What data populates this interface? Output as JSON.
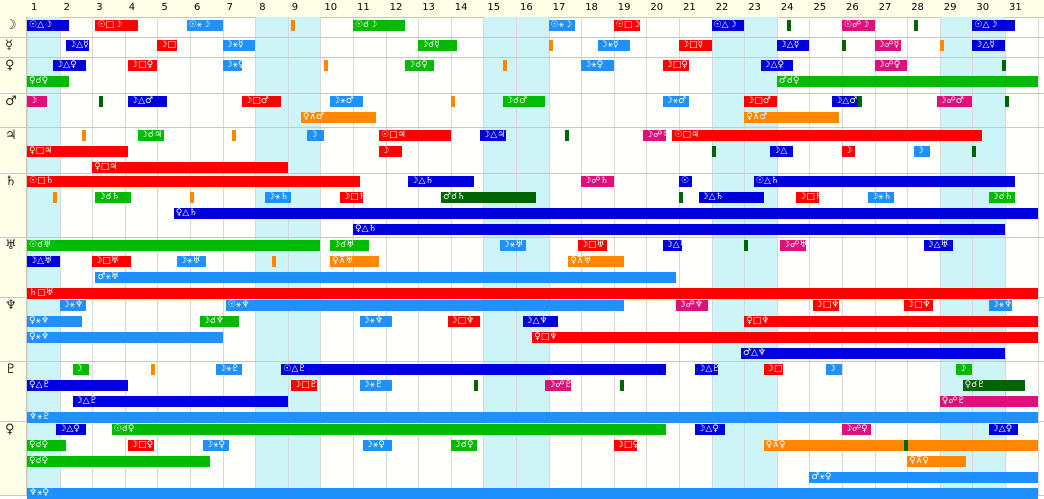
{
  "days": [
    "1",
    "2",
    "3",
    "4",
    "5",
    "6",
    "7",
    "8",
    "9",
    "10",
    "11",
    "12",
    "13",
    "14",
    "15",
    "16",
    "17",
    "18",
    "19",
    "20",
    "21",
    "22",
    "23",
    "24",
    "25",
    "26",
    "27",
    "28",
    "29",
    "30",
    "31"
  ],
  "weekend_days": [
    1,
    8,
    9,
    15,
    16,
    22,
    23,
    29,
    30
  ],
  "planets": [
    {
      "name": "moon",
      "glyph": "☽"
    },
    {
      "name": "mercury",
      "glyph": "☿"
    },
    {
      "name": "venus",
      "glyph": "♀"
    },
    {
      "name": "mars",
      "glyph": "♂"
    },
    {
      "name": "jupiter",
      "glyph": "♃"
    },
    {
      "name": "saturn",
      "glyph": "♄"
    },
    {
      "name": "uranus",
      "glyph": "♅"
    },
    {
      "name": "neptune",
      "glyph": "♆"
    },
    {
      "name": "pluto",
      "glyph": "♇"
    },
    {
      "name": "venus-2",
      "glyph": "♀"
    }
  ],
  "colors": {
    "blue": "#0000dd",
    "red": "#ff0000",
    "green": "#00bb00",
    "orange": "#ff8800",
    "sky": "#1e90ff",
    "magenta": "#e0107a",
    "darkgreen": "#006400"
  },
  "bars": [
    {
      "row": 0,
      "line": 0,
      "start": 1,
      "end": 2.3,
      "color": "blue",
      "label": "☉△☽"
    },
    {
      "row": 0,
      "line": 0,
      "start": 3.1,
      "end": 4.4,
      "color": "red",
      "label": "☉□☽"
    },
    {
      "row": 0,
      "line": 0,
      "start": 5.9,
      "end": 7.0,
      "color": "sky",
      "label": "☉⚹☽"
    },
    {
      "row": 0,
      "line": 0,
      "start": 11.0,
      "end": 12.6,
      "color": "green",
      "label": "☉☌☽"
    },
    {
      "row": 0,
      "line": 0,
      "start": 17.0,
      "end": 17.8,
      "color": "sky",
      "label": "☉⚹☽"
    },
    {
      "row": 0,
      "line": 0,
      "start": 19.0,
      "end": 19.8,
      "color": "red",
      "label": "☉□☽"
    },
    {
      "row": 0,
      "line": 0,
      "start": 22.0,
      "end": 23.0,
      "color": "blue",
      "label": "☉△☽"
    },
    {
      "row": 0,
      "line": 0,
      "start": 26.0,
      "end": 27.0,
      "color": "magenta",
      "label": "☉☍☽"
    },
    {
      "row": 0,
      "line": 0,
      "start": 30.0,
      "end": 31.3,
      "color": "blue",
      "label": "☉△☽"
    },
    {
      "row": 1,
      "line": 0,
      "start": 2.2,
      "end": 2.9,
      "color": "blue",
      "label": "☽△☿"
    },
    {
      "row": 1,
      "line": 0,
      "start": 5.0,
      "end": 5.6,
      "color": "red",
      "label": "☽□☿"
    },
    {
      "row": 1,
      "line": 0,
      "start": 7.0,
      "end": 8.0,
      "color": "sky",
      "label": "☽⚹☿"
    },
    {
      "row": 1,
      "line": 0,
      "start": 13.0,
      "end": 14.2,
      "color": "green",
      "label": "☽☌☿"
    },
    {
      "row": 1,
      "line": 0,
      "start": 18.5,
      "end": 19.5,
      "color": "sky",
      "label": "☽⚹☿"
    },
    {
      "row": 1,
      "line": 0,
      "start": 21.0,
      "end": 22.0,
      "color": "red",
      "label": "☽□☿"
    },
    {
      "row": 1,
      "line": 0,
      "start": 24.0,
      "end": 25.0,
      "color": "blue",
      "label": "☽△☿"
    },
    {
      "row": 1,
      "line": 0,
      "start": 27.0,
      "end": 27.8,
      "color": "magenta",
      "label": "☽☍☿"
    },
    {
      "row": 1,
      "line": 0,
      "start": 30.0,
      "end": 31.0,
      "color": "blue",
      "label": "☽△☿"
    },
    {
      "row": 2,
      "line": 0,
      "start": 1.8,
      "end": 2.8,
      "color": "blue",
      "label": "☽△♀"
    },
    {
      "row": 2,
      "line": 0,
      "start": 4.1,
      "end": 5.0,
      "color": "red",
      "label": "☽□♀"
    },
    {
      "row": 2,
      "line": 0,
      "start": 7.0,
      "end": 7.6,
      "color": "sky",
      "label": "☽⚹♀"
    },
    {
      "row": 2,
      "line": 0,
      "start": 12.6,
      "end": 13.5,
      "color": "green",
      "label": "☽☌♀"
    },
    {
      "row": 2,
      "line": 0,
      "start": 18.0,
      "end": 19.0,
      "color": "sky",
      "label": "☽⚹♀"
    },
    {
      "row": 2,
      "line": 0,
      "start": 20.5,
      "end": 21.3,
      "color": "red",
      "label": "☽□♀"
    },
    {
      "row": 2,
      "line": 0,
      "start": 23.5,
      "end": 24.5,
      "color": "blue",
      "label": "☽△♀"
    },
    {
      "row": 2,
      "line": 0,
      "start": 27.0,
      "end": 28.0,
      "color": "magenta",
      "label": "☽☍♀"
    },
    {
      "row": 2,
      "line": 1,
      "start": 1.0,
      "end": 2.3,
      "color": "green",
      "label": "♀☌♀"
    },
    {
      "row": 2,
      "line": 1,
      "start": 24.0,
      "end": 32.0,
      "color": "green",
      "label": "♂☌♀"
    },
    {
      "row": 3,
      "line": 0,
      "start": 1.0,
      "end": 1.6,
      "color": "magenta",
      "label": "☽"
    },
    {
      "row": 3,
      "line": 0,
      "start": 4.1,
      "end": 5.3,
      "color": "blue",
      "label": "☽△♂"
    },
    {
      "row": 3,
      "line": 0,
      "start": 7.6,
      "end": 8.8,
      "color": "red",
      "label": "☽□♂"
    },
    {
      "row": 3,
      "line": 0,
      "start": 10.3,
      "end": 11.3,
      "color": "sky",
      "label": "☽⚹♂"
    },
    {
      "row": 3,
      "line": 0,
      "start": 15.6,
      "end": 16.9,
      "color": "green",
      "label": "☽☌♂"
    },
    {
      "row": 3,
      "line": 0,
      "start": 20.5,
      "end": 21.3,
      "color": "sky",
      "label": "☽⚹♂"
    },
    {
      "row": 3,
      "line": 0,
      "start": 23.0,
      "end": 24.0,
      "color": "red",
      "label": "☽□♂"
    },
    {
      "row": 3,
      "line": 0,
      "start": 25.7,
      "end": 26.6,
      "color": "blue",
      "label": "☽△♂"
    },
    {
      "row": 3,
      "line": 0,
      "start": 28.9,
      "end": 30.0,
      "color": "magenta",
      "label": "☽☍♂"
    },
    {
      "row": 3,
      "line": 1,
      "start": 9.4,
      "end": 11.7,
      "color": "orange",
      "label": "♀⊼♂"
    },
    {
      "row": 3,
      "line": 1,
      "start": 23.0,
      "end": 25.9,
      "color": "orange",
      "label": "♀⊼♂"
    },
    {
      "row": 4,
      "line": 0,
      "start": 4.4,
      "end": 5.2,
      "color": "green",
      "label": "☽☌♃"
    },
    {
      "row": 4,
      "line": 0,
      "start": 9.6,
      "end": 10.1,
      "color": "sky",
      "label": "☽"
    },
    {
      "row": 4,
      "line": 0,
      "start": 11.8,
      "end": 14.0,
      "color": "red",
      "label": "☉□♃"
    },
    {
      "row": 4,
      "line": 0,
      "start": 14.9,
      "end": 15.7,
      "color": "blue",
      "label": "☽△♃"
    },
    {
      "row": 4,
      "line": 0,
      "start": 19.9,
      "end": 20.6,
      "color": "magenta",
      "label": "☽☍♃"
    },
    {
      "row": 4,
      "line": 0,
      "start": 20.8,
      "end": 30.3,
      "color": "red",
      "label": "☉□♃"
    },
    {
      "row": 4,
      "line": 1,
      "start": 1.0,
      "end": 4.1,
      "color": "red",
      "label": "♀□♃"
    },
    {
      "row": 4,
      "line": 1,
      "start": 11.8,
      "end": 12.5,
      "color": "red",
      "label": "☽"
    },
    {
      "row": 4,
      "line": 1,
      "start": 23.8,
      "end": 24.5,
      "color": "blue",
      "label": "☽△"
    },
    {
      "row": 4,
      "line": 1,
      "start": 26.0,
      "end": 26.4,
      "color": "red",
      "label": "☽"
    },
    {
      "row": 4,
      "line": 1,
      "start": 28.2,
      "end": 28.7,
      "color": "sky",
      "label": "☽"
    },
    {
      "row": 4,
      "line": 2,
      "start": 3.0,
      "end": 9.0,
      "color": "red",
      "label": "♀□♃"
    },
    {
      "row": 5,
      "line": 0,
      "start": 1.0,
      "end": 11.2,
      "color": "red",
      "label": "☉□♄"
    },
    {
      "row": 5,
      "line": 0,
      "start": 12.7,
      "end": 14.7,
      "color": "blue",
      "label": "☽△♄"
    },
    {
      "row": 5,
      "line": 0,
      "start": 18.0,
      "end": 19.0,
      "color": "magenta",
      "label": "☽☍♄"
    },
    {
      "row": 5,
      "line": 0,
      "start": 21.0,
      "end": 21.4,
      "color": "blue",
      "label": "☉"
    },
    {
      "row": 5,
      "line": 0,
      "start": 23.3,
      "end": 31.3,
      "color": "blue",
      "label": "☉△♄"
    },
    {
      "row": 5,
      "line": 1,
      "start": 3.1,
      "end": 4.2,
      "color": "green",
      "label": "☽☌♄"
    },
    {
      "row": 5,
      "line": 1,
      "start": 8.3,
      "end": 9.1,
      "color": "sky",
      "label": "☽⚹♄"
    },
    {
      "row": 5,
      "line": 1,
      "start": 10.6,
      "end": 11.3,
      "color": "red",
      "label": "☽□♄"
    },
    {
      "row": 5,
      "line": 1,
      "start": 13.7,
      "end": 16.6,
      "color": "darkgreen",
      "label": "♂☌♄"
    },
    {
      "row": 5,
      "line": 1,
      "start": 21.6,
      "end": 23.6,
      "color": "blue",
      "label": "☽△♄"
    },
    {
      "row": 5,
      "line": 1,
      "start": 24.6,
      "end": 25.3,
      "color": "red",
      "label": "☽□♄"
    },
    {
      "row": 5,
      "line": 1,
      "start": 26.8,
      "end": 27.6,
      "color": "sky",
      "label": "☽⚹♄"
    },
    {
      "row": 5,
      "line": 1,
      "start": 30.5,
      "end": 31.3,
      "color": "green",
      "label": "☽☌♄"
    },
    {
      "row": 5,
      "line": 2,
      "start": 5.5,
      "end": 32.0,
      "color": "blue",
      "label": "♀△♄"
    },
    {
      "row": 5,
      "line": 3,
      "start": 11.0,
      "end": 31.0,
      "color": "blue",
      "label": "♀△♄"
    },
    {
      "row": 6,
      "line": 0,
      "start": 1.0,
      "end": 10.0,
      "color": "green",
      "label": "☉☌♅"
    },
    {
      "row": 6,
      "line": 0,
      "start": 10.3,
      "end": 11.5,
      "color": "green",
      "label": "☽☌♅"
    },
    {
      "row": 6,
      "line": 0,
      "start": 15.5,
      "end": 16.3,
      "color": "sky",
      "label": "☽⚹♅"
    },
    {
      "row": 6,
      "line": 0,
      "start": 17.9,
      "end": 18.8,
      "color": "red",
      "label": "☽□♅"
    },
    {
      "row": 6,
      "line": 0,
      "start": 20.5,
      "end": 21.1,
      "color": "blue",
      "label": "☽△♅"
    },
    {
      "row": 6,
      "line": 0,
      "start": 24.1,
      "end": 24.9,
      "color": "magenta",
      "label": "☽☍♅"
    },
    {
      "row": 6,
      "line": 0,
      "start": 28.5,
      "end": 29.4,
      "color": "blue",
      "label": "☽△♅"
    },
    {
      "row": 6,
      "line": 1,
      "start": 1.0,
      "end": 2.0,
      "color": "blue",
      "label": "☽△♅"
    },
    {
      "row": 6,
      "line": 1,
      "start": 3.0,
      "end": 4.2,
      "color": "red",
      "label": "☽□♅"
    },
    {
      "row": 6,
      "line": 1,
      "start": 5.6,
      "end": 6.5,
      "color": "sky",
      "label": "☽⚹♅"
    },
    {
      "row": 6,
      "line": 1,
      "start": 10.3,
      "end": 11.8,
      "color": "orange",
      "label": "♀⊼♅"
    },
    {
      "row": 6,
      "line": 1,
      "start": 17.6,
      "end": 19.3,
      "color": "orange",
      "label": "♀⊼♅"
    },
    {
      "row": 6,
      "line": 2,
      "start": 3.1,
      "end": 20.9,
      "color": "sky",
      "label": "♂⚹♅"
    },
    {
      "row": 6,
      "line": 3,
      "start": 1.0,
      "end": 32.0,
      "color": "red",
      "label": "♄□♅"
    },
    {
      "row": 7,
      "line": 0,
      "start": 2.0,
      "end": 2.8,
      "color": "sky",
      "label": "☽⚹♆"
    },
    {
      "row": 7,
      "line": 0,
      "start": 7.1,
      "end": 19.3,
      "color": "sky",
      "label": "☉⚹♆"
    },
    {
      "row": 7,
      "line": 0,
      "start": 20.9,
      "end": 21.9,
      "color": "magenta",
      "label": "☽☍♆"
    },
    {
      "row": 7,
      "line": 0,
      "start": 25.1,
      "end": 25.9,
      "color": "red",
      "label": "☽□♆"
    },
    {
      "row": 7,
      "line": 0,
      "start": 27.9,
      "end": 28.8,
      "color": "red",
      "label": "☽□♆"
    },
    {
      "row": 7,
      "line": 0,
      "start": 30.5,
      "end": 31.2,
      "color": "sky",
      "label": "☽⚹♆"
    },
    {
      "row": 7,
      "line": 1,
      "start": 1.0,
      "end": 2.7,
      "color": "sky",
      "label": "♀⚹♆"
    },
    {
      "row": 7,
      "line": 1,
      "start": 6.3,
      "end": 7.5,
      "color": "green",
      "label": "☽☌♆"
    },
    {
      "row": 7,
      "line": 1,
      "start": 11.2,
      "end": 12.2,
      "color": "sky",
      "label": "☽⚹♆"
    },
    {
      "row": 7,
      "line": 1,
      "start": 13.9,
      "end": 14.9,
      "color": "red",
      "label": "☽□♆"
    },
    {
      "row": 7,
      "line": 1,
      "start": 16.2,
      "end": 17.3,
      "color": "blue",
      "label": "☽△♆"
    },
    {
      "row": 7,
      "line": 1,
      "start": 23.0,
      "end": 32.0,
      "color": "red",
      "label": "♀□♆"
    },
    {
      "row": 7,
      "line": 2,
      "start": 1.0,
      "end": 7.0,
      "color": "sky",
      "label": "♀⚹♆"
    },
    {
      "row": 7,
      "line": 2,
      "start": 16.5,
      "end": 32.0,
      "color": "red",
      "label": "♀□♆"
    },
    {
      "row": 7,
      "line": 3,
      "start": 22.9,
      "end": 31.0,
      "color": "blue",
      "label": "♂△♆"
    },
    {
      "row": 8,
      "line": 0,
      "start": 2.4,
      "end": 2.9,
      "color": "green",
      "label": "☽"
    },
    {
      "row": 8,
      "line": 0,
      "start": 6.8,
      "end": 7.6,
      "color": "sky",
      "label": "☽⚹♇"
    },
    {
      "row": 8,
      "line": 0,
      "start": 8.8,
      "end": 20.6,
      "color": "blue",
      "label": "☉△♇"
    },
    {
      "row": 8,
      "line": 0,
      "start": 21.5,
      "end": 22.2,
      "color": "blue",
      "label": "☽△♇"
    },
    {
      "row": 8,
      "line": 0,
      "start": 23.6,
      "end": 24.2,
      "color": "red",
      "label": "☽□♇"
    },
    {
      "row": 8,
      "line": 0,
      "start": 25.5,
      "end": 26.0,
      "color": "sky",
      "label": "☽"
    },
    {
      "row": 8,
      "line": 0,
      "start": 29.5,
      "end": 30.0,
      "color": "green",
      "label": "☽"
    },
    {
      "row": 8,
      "line": 1,
      "start": 1.0,
      "end": 4.1,
      "color": "blue",
      "label": "♀△♇"
    },
    {
      "row": 8,
      "line": 1,
      "start": 9.1,
      "end": 9.9,
      "color": "red",
      "label": "☽□♇"
    },
    {
      "row": 8,
      "line": 1,
      "start": 11.2,
      "end": 12.2,
      "color": "sky",
      "label": "☽⚹♇"
    },
    {
      "row": 8,
      "line": 1,
      "start": 16.9,
      "end": 17.7,
      "color": "magenta",
      "label": "☽☍♇"
    },
    {
      "row": 8,
      "line": 1,
      "start": 29.7,
      "end": 31.6,
      "color": "darkgreen",
      "label": "♀☌♇"
    },
    {
      "row": 8,
      "line": 2,
      "start": 2.4,
      "end": 9.0,
      "color": "blue",
      "label": "☽△♇"
    },
    {
      "row": 8,
      "line": 2,
      "start": 29.0,
      "end": 32.0,
      "color": "magenta",
      "label": "♀☍♇"
    },
    {
      "row": 8,
      "line": 3,
      "start": 1.0,
      "end": 32.0,
      "color": "sky",
      "label": "♆⚹♇"
    },
    {
      "row": 9,
      "line": 0,
      "start": 1.9,
      "end": 2.8,
      "color": "blue",
      "label": "☽△♀"
    },
    {
      "row": 9,
      "line": 0,
      "start": 3.6,
      "end": 20.6,
      "color": "green",
      "label": "☉☌♀"
    },
    {
      "row": 9,
      "line": 0,
      "start": 21.5,
      "end": 22.4,
      "color": "blue",
      "label": "☽△♀"
    },
    {
      "row": 9,
      "line": 0,
      "start": 26.0,
      "end": 26.9,
      "color": "magenta",
      "label": "☽☍♀"
    },
    {
      "row": 9,
      "line": 0,
      "start": 30.5,
      "end": 31.4,
      "color": "blue",
      "label": "☽△♀"
    },
    {
      "row": 9,
      "line": 1,
      "start": 1.0,
      "end": 2.2,
      "color": "green",
      "label": "♀☌♀"
    },
    {
      "row": 9,
      "line": 1,
      "start": 4.1,
      "end": 4.9,
      "color": "red",
      "label": "☽□♀"
    },
    {
      "row": 9,
      "line": 1,
      "start": 6.4,
      "end": 7.2,
      "color": "sky",
      "label": "☽⚹♀"
    },
    {
      "row": 9,
      "line": 1,
      "start": 11.3,
      "end": 12.2,
      "color": "sky",
      "label": "☽⚹♀"
    },
    {
      "row": 9,
      "line": 1,
      "start": 14.0,
      "end": 14.8,
      "color": "green",
      "label": "☽☌♀"
    },
    {
      "row": 9,
      "line": 1,
      "start": 19.0,
      "end": 19.7,
      "color": "red",
      "label": "☽□♀"
    },
    {
      "row": 9,
      "line": 1,
      "start": 23.6,
      "end": 32.0,
      "color": "orange",
      "label": "♀⊼♀"
    },
    {
      "row": 9,
      "line": 2,
      "start": 1.0,
      "end": 6.6,
      "color": "green",
      "label": "♀☌♀"
    },
    {
      "row": 9,
      "line": 2,
      "start": 28.0,
      "end": 29.8,
      "color": "orange",
      "label": "♀⊼♀"
    },
    {
      "row": 9,
      "line": 3,
      "start": 25.0,
      "end": 32.0,
      "color": "sky",
      "label": "♂⚹♀"
    },
    {
      "row": 9,
      "line": 4,
      "start": 1.0,
      "end": 32.0,
      "color": "sky",
      "label": "♆⚹♀"
    }
  ],
  "ticks": [
    {
      "row": 0,
      "line": 0,
      "day": 9.1,
      "color": "orange"
    },
    {
      "row": 0,
      "line": 0,
      "day": 24.3,
      "color": "darkgreen"
    },
    {
      "row": 0,
      "line": 0,
      "day": 28.2,
      "color": "darkgreen"
    },
    {
      "row": 1,
      "line": 0,
      "day": 26.0,
      "color": "darkgreen"
    },
    {
      "row": 1,
      "line": 0,
      "day": 29.0,
      "color": "orange"
    },
    {
      "row": 1,
      "line": 0,
      "day": 17.0,
      "color": "orange"
    },
    {
      "row": 2,
      "line": 0,
      "day": 10.1,
      "color": "orange"
    },
    {
      "row": 2,
      "line": 0,
      "day": 15.6,
      "color": "orange"
    },
    {
      "row": 2,
      "line": 0,
      "day": 30.9,
      "color": "darkgreen"
    },
    {
      "row": 3,
      "line": 0,
      "day": 3.2,
      "color": "darkgreen"
    },
    {
      "row": 3,
      "line": 0,
      "day": 14.0,
      "color": "orange"
    },
    {
      "row": 3,
      "line": 0,
      "day": 26.5,
      "color": "darkgreen"
    },
    {
      "row": 3,
      "line": 0,
      "day": 31.0,
      "color": "darkgreen"
    },
    {
      "row": 4,
      "line": 0,
      "day": 2.7,
      "color": "orange"
    },
    {
      "row": 4,
      "line": 0,
      "day": 7.3,
      "color": "orange"
    },
    {
      "row": 4,
      "line": 0,
      "day": 17.5,
      "color": "darkgreen"
    },
    {
      "row": 4,
      "line": 1,
      "day": 22.0,
      "color": "darkgreen"
    },
    {
      "row": 4,
      "line": 1,
      "day": 30.0,
      "color": "darkgreen"
    },
    {
      "row": 5,
      "line": 1,
      "day": 1.8,
      "color": "orange"
    },
    {
      "row": 5,
      "line": 1,
      "day": 6.0,
      "color": "orange"
    },
    {
      "row": 5,
      "line": 1,
      "day": 21.0,
      "color": "darkgreen"
    },
    {
      "row": 6,
      "line": 0,
      "day": 23.0,
      "color": "darkgreen"
    },
    {
      "row": 6,
      "line": 1,
      "day": 8.5,
      "color": "orange"
    },
    {
      "row": 8,
      "line": 0,
      "day": 4.8,
      "color": "orange"
    },
    {
      "row": 8,
      "line": 1,
      "day": 14.7,
      "color": "darkgreen"
    },
    {
      "row": 8,
      "line": 1,
      "day": 19.2,
      "color": "darkgreen"
    },
    {
      "row": 9,
      "line": 1,
      "day": 27.9,
      "color": "darkgreen"
    }
  ]
}
